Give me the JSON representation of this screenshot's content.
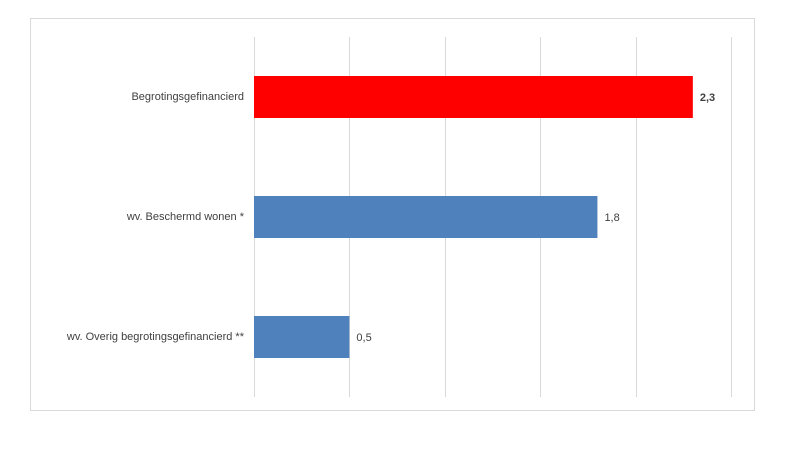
{
  "chart_data": {
    "type": "bar",
    "orientation": "horizontal",
    "categories": [
      "Begrotingsgefinancierd",
      "wv. Beschermd wonen *",
      "wv. Overig begrotingsgefinancierd **"
    ],
    "values": [
      2.3,
      1.8,
      0.5
    ],
    "value_labels": [
      "2,3",
      "1,8",
      "0,5"
    ],
    "colors": [
      "#ff0000",
      "#4f81bd",
      "#4f81bd"
    ],
    "xlim": [
      0,
      2.5
    ],
    "xticks": [
      0,
      0.5,
      1,
      1.5,
      2,
      2.5
    ],
    "grid": true
  }
}
